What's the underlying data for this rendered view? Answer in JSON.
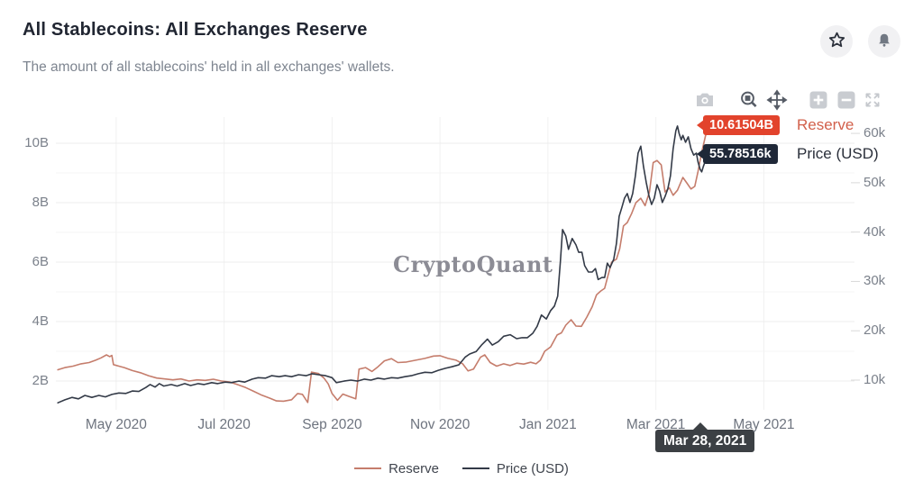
{
  "header": {
    "title": "All Stablecoins: All Exchanges Reserve",
    "subtitle": "The amount of all stablecoins' held in all exchanges' wallets."
  },
  "actions": {
    "favorite": "favorite",
    "notifications": "notifications"
  },
  "toolbar": {
    "buttons": [
      "screenshot",
      "box-zoom",
      "pan",
      "zoom-in",
      "zoom-out",
      "reset-scale"
    ]
  },
  "watermark": "CryptoQuant",
  "badges": {
    "reserve": {
      "value": "10.61504B",
      "label": "Reserve",
      "color": "#e2432c"
    },
    "price": {
      "value": "55.78516k",
      "label": "Price (USD)",
      "color": "#1f2838"
    }
  },
  "tooltip": {
    "date": "Mar 28, 2021"
  },
  "legend": [
    {
      "label": "Reserve",
      "color": "#c57d6c"
    },
    {
      "label": "Price (USD)",
      "color": "#333a47"
    }
  ],
  "chart_data": {
    "type": "line",
    "title": "All Stablecoins: All Exchanges Reserve",
    "x_axis": {
      "unit": "months since 2020-04-01",
      "range": [
        -0.117,
        14.68
      ],
      "ticks": [
        {
          "t": 1,
          "label": "May 2020"
        },
        {
          "t": 3,
          "label": "Jul 2020"
        },
        {
          "t": 5,
          "label": "Sep 2020"
        },
        {
          "t": 7,
          "label": "Nov 2020"
        },
        {
          "t": 9,
          "label": "Jan 2021"
        },
        {
          "t": 11,
          "label": "Mar 2021"
        },
        {
          "t": 13,
          "label": "May 2021"
        }
      ]
    },
    "y_left": {
      "label": "Reserve",
      "unit": "billions",
      "range": [
        1.03,
        10.88
      ],
      "ticks": [
        2,
        4,
        6,
        8,
        10
      ],
      "tick_labels": [
        "2B",
        "4B",
        "6B",
        "8B",
        "10B"
      ],
      "minor_ticks": [
        3,
        5,
        7,
        9
      ]
    },
    "y_right": {
      "label": "Price (USD)",
      "unit": "thousand USD",
      "range": [
        3.98,
        63.3
      ],
      "ticks": [
        10,
        20,
        30,
        40,
        50,
        60
      ],
      "tick_labels": [
        "10k",
        "20k",
        "30k",
        "40k",
        "50k",
        "60k"
      ]
    },
    "grid": true,
    "legend_position": "bottom",
    "crosshair": {
      "t": 11.85,
      "date_label": "Mar 28, 2021"
    },
    "series": [
      {
        "name": "Reserve",
        "axis": "left",
        "color": "#c57d6c",
        "last_value_label": "10.61504B",
        "points": [
          [
            -0.08,
            2.38
          ],
          [
            0.05,
            2.45
          ],
          [
            0.2,
            2.5
          ],
          [
            0.35,
            2.58
          ],
          [
            0.5,
            2.62
          ],
          [
            0.62,
            2.7
          ],
          [
            0.72,
            2.78
          ],
          [
            0.82,
            2.88
          ],
          [
            0.88,
            2.82
          ],
          [
            0.92,
            2.86
          ],
          [
            0.95,
            2.55
          ],
          [
            1.05,
            2.5
          ],
          [
            1.15,
            2.45
          ],
          [
            1.3,
            2.35
          ],
          [
            1.45,
            2.28
          ],
          [
            1.6,
            2.18
          ],
          [
            1.75,
            2.1
          ],
          [
            1.9,
            2.07
          ],
          [
            2.05,
            2.04
          ],
          [
            2.2,
            2.07
          ],
          [
            2.35,
            2.0
          ],
          [
            2.5,
            2.04
          ],
          [
            2.65,
            2.02
          ],
          [
            2.8,
            2.06
          ],
          [
            2.95,
            2.0
          ],
          [
            3.1,
            1.97
          ],
          [
            3.25,
            1.88
          ],
          [
            3.4,
            1.78
          ],
          [
            3.55,
            1.65
          ],
          [
            3.7,
            1.52
          ],
          [
            3.85,
            1.42
          ],
          [
            3.97,
            1.33
          ],
          [
            4.1,
            1.32
          ],
          [
            4.25,
            1.37
          ],
          [
            4.36,
            1.58
          ],
          [
            4.45,
            1.55
          ],
          [
            4.55,
            1.28
          ],
          [
            4.62,
            2.3
          ],
          [
            4.75,
            2.25
          ],
          [
            4.85,
            2.1
          ],
          [
            4.93,
            1.9
          ],
          [
            5.0,
            1.58
          ],
          [
            5.1,
            1.35
          ],
          [
            5.2,
            1.56
          ],
          [
            5.32,
            1.48
          ],
          [
            5.44,
            1.4
          ],
          [
            5.5,
            2.4
          ],
          [
            5.62,
            2.45
          ],
          [
            5.74,
            2.32
          ],
          [
            5.85,
            2.48
          ],
          [
            5.97,
            2.68
          ],
          [
            6.1,
            2.75
          ],
          [
            6.22,
            2.62
          ],
          [
            6.38,
            2.64
          ],
          [
            6.55,
            2.7
          ],
          [
            6.72,
            2.76
          ],
          [
            6.88,
            2.84
          ],
          [
            7.0,
            2.85
          ],
          [
            7.15,
            2.76
          ],
          [
            7.3,
            2.7
          ],
          [
            7.42,
            2.58
          ],
          [
            7.52,
            2.34
          ],
          [
            7.62,
            2.4
          ],
          [
            7.75,
            2.8
          ],
          [
            7.83,
            2.88
          ],
          [
            7.93,
            2.62
          ],
          [
            8.05,
            2.5
          ],
          [
            8.18,
            2.58
          ],
          [
            8.3,
            2.52
          ],
          [
            8.42,
            2.6
          ],
          [
            8.55,
            2.57
          ],
          [
            8.68,
            2.63
          ],
          [
            8.78,
            2.58
          ],
          [
            8.86,
            2.7
          ],
          [
            8.94,
            3.0
          ],
          [
            9.05,
            3.15
          ],
          [
            9.17,
            3.55
          ],
          [
            9.25,
            3.62
          ],
          [
            9.33,
            3.88
          ],
          [
            9.43,
            4.06
          ],
          [
            9.52,
            3.85
          ],
          [
            9.62,
            3.84
          ],
          [
            9.72,
            4.15
          ],
          [
            9.82,
            4.5
          ],
          [
            9.9,
            4.9
          ],
          [
            9.98,
            5.03
          ],
          [
            10.05,
            5.12
          ],
          [
            10.12,
            5.6
          ],
          [
            10.18,
            6.0
          ],
          [
            10.27,
            6.1
          ],
          [
            10.33,
            6.45
          ],
          [
            10.4,
            7.22
          ],
          [
            10.47,
            7.33
          ],
          [
            10.55,
            7.63
          ],
          [
            10.63,
            8.0
          ],
          [
            10.72,
            8.15
          ],
          [
            10.8,
            7.9
          ],
          [
            10.88,
            8.36
          ],
          [
            10.95,
            9.35
          ],
          [
            11.02,
            9.42
          ],
          [
            11.1,
            9.27
          ],
          [
            11.17,
            8.36
          ],
          [
            11.25,
            8.5
          ],
          [
            11.32,
            8.25
          ],
          [
            11.4,
            8.42
          ],
          [
            11.5,
            8.85
          ],
          [
            11.57,
            8.67
          ],
          [
            11.65,
            8.46
          ],
          [
            11.72,
            8.55
          ],
          [
            11.78,
            9.05
          ],
          [
            11.85,
            9.7
          ],
          [
            11.92,
            10.25
          ],
          [
            12.0,
            10.615
          ]
        ]
      },
      {
        "name": "Price (USD)",
        "axis": "right",
        "color": "#333a47",
        "last_value_label": "55.78516k",
        "points": [
          [
            -0.08,
            5.4
          ],
          [
            0.05,
            6.0
          ],
          [
            0.18,
            6.5
          ],
          [
            0.3,
            6.2
          ],
          [
            0.42,
            6.9
          ],
          [
            0.55,
            6.5
          ],
          [
            0.68,
            6.9
          ],
          [
            0.8,
            6.6
          ],
          [
            0.92,
            7.1
          ],
          [
            1.05,
            7.4
          ],
          [
            1.18,
            7.3
          ],
          [
            1.3,
            7.8
          ],
          [
            1.42,
            7.7
          ],
          [
            1.55,
            8.5
          ],
          [
            1.63,
            9.1
          ],
          [
            1.72,
            8.6
          ],
          [
            1.8,
            9.3
          ],
          [
            1.88,
            8.8
          ],
          [
            2.02,
            9.1
          ],
          [
            2.13,
            8.8
          ],
          [
            2.27,
            9.3
          ],
          [
            2.38,
            8.9
          ],
          [
            2.52,
            9.3
          ],
          [
            2.63,
            9.1
          ],
          [
            2.77,
            9.5
          ],
          [
            2.88,
            9.3
          ],
          [
            3.02,
            9.6
          ],
          [
            3.13,
            9.5
          ],
          [
            3.27,
            9.8
          ],
          [
            3.38,
            9.6
          ],
          [
            3.52,
            10.2
          ],
          [
            3.63,
            10.5
          ],
          [
            3.77,
            10.4
          ],
          [
            3.88,
            10.9
          ],
          [
            4.02,
            10.7
          ],
          [
            4.13,
            10.9
          ],
          [
            4.25,
            10.7
          ],
          [
            4.38,
            11.1
          ],
          [
            4.52,
            10.9
          ],
          [
            4.63,
            11.3
          ],
          [
            4.75,
            11.1
          ],
          [
            4.88,
            10.9
          ],
          [
            5.0,
            10.5
          ],
          [
            5.08,
            9.5
          ],
          [
            5.22,
            9.8
          ],
          [
            5.35,
            10.0
          ],
          [
            5.47,
            9.8
          ],
          [
            5.6,
            10.2
          ],
          [
            5.72,
            10.0
          ],
          [
            5.85,
            10.4
          ],
          [
            5.97,
            10.2
          ],
          [
            6.1,
            10.5
          ],
          [
            6.22,
            10.4
          ],
          [
            6.35,
            10.7
          ],
          [
            6.47,
            10.9
          ],
          [
            6.6,
            11.3
          ],
          [
            6.72,
            11.6
          ],
          [
            6.85,
            11.5
          ],
          [
            6.97,
            12.0
          ],
          [
            7.1,
            12.4
          ],
          [
            7.22,
            12.7
          ],
          [
            7.35,
            13.1
          ],
          [
            7.47,
            14.7
          ],
          [
            7.55,
            15.3
          ],
          [
            7.67,
            15.8
          ],
          [
            7.77,
            17.1
          ],
          [
            7.88,
            18.3
          ],
          [
            7.97,
            17.1
          ],
          [
            8.08,
            17.8
          ],
          [
            8.18,
            18.9
          ],
          [
            8.3,
            19.2
          ],
          [
            8.42,
            18.4
          ],
          [
            8.52,
            18.6
          ],
          [
            8.62,
            18.6
          ],
          [
            8.72,
            19.5
          ],
          [
            8.8,
            20.9
          ],
          [
            8.88,
            23.2
          ],
          [
            8.97,
            22.4
          ],
          [
            9.05,
            24.1
          ],
          [
            9.12,
            25.0
          ],
          [
            9.18,
            27.0
          ],
          [
            9.23,
            34.0
          ],
          [
            9.27,
            40.5
          ],
          [
            9.33,
            39.2
          ],
          [
            9.38,
            36.5
          ],
          [
            9.45,
            38.7
          ],
          [
            9.52,
            37.4
          ],
          [
            9.57,
            35.9
          ],
          [
            9.63,
            35.9
          ],
          [
            9.68,
            33.2
          ],
          [
            9.75,
            31.9
          ],
          [
            9.82,
            31.9
          ],
          [
            9.88,
            32.6
          ],
          [
            9.93,
            30.4
          ],
          [
            10.0,
            30.8
          ],
          [
            10.05,
            30.8
          ],
          [
            10.1,
            33.7
          ],
          [
            10.15,
            32.8
          ],
          [
            10.22,
            34.5
          ],
          [
            10.27,
            37.7
          ],
          [
            10.32,
            43.2
          ],
          [
            10.37,
            45.0
          ],
          [
            10.42,
            46.9
          ],
          [
            10.47,
            47.8
          ],
          [
            10.52,
            46.0
          ],
          [
            10.57,
            47.8
          ],
          [
            10.62,
            51.4
          ],
          [
            10.67,
            56.0
          ],
          [
            10.72,
            57.4
          ],
          [
            10.77,
            53.3
          ],
          [
            10.82,
            50.1
          ],
          [
            10.87,
            47.4
          ],
          [
            10.92,
            45.6
          ],
          [
            10.97,
            46.9
          ],
          [
            11.02,
            49.6
          ],
          [
            11.07,
            48.3
          ],
          [
            11.12,
            46.0
          ],
          [
            11.17,
            47.2
          ],
          [
            11.22,
            48.7
          ],
          [
            11.27,
            51.4
          ],
          [
            11.32,
            56.9
          ],
          [
            11.37,
            60.5
          ],
          [
            11.4,
            61.5
          ],
          [
            11.43,
            60.0
          ],
          [
            11.47,
            58.7
          ],
          [
            11.5,
            59.6
          ],
          [
            11.55,
            58.2
          ],
          [
            11.6,
            59.3
          ],
          [
            11.65,
            56.9
          ],
          [
            11.7,
            55.6
          ],
          [
            11.75,
            56.0
          ],
          [
            11.78,
            54.2
          ],
          [
            11.82,
            52.7
          ],
          [
            11.85,
            52.2
          ],
          [
            11.88,
            53.3
          ],
          [
            11.92,
            54.5
          ],
          [
            11.96,
            55.3
          ],
          [
            12.0,
            55.785
          ]
        ]
      }
    ]
  }
}
